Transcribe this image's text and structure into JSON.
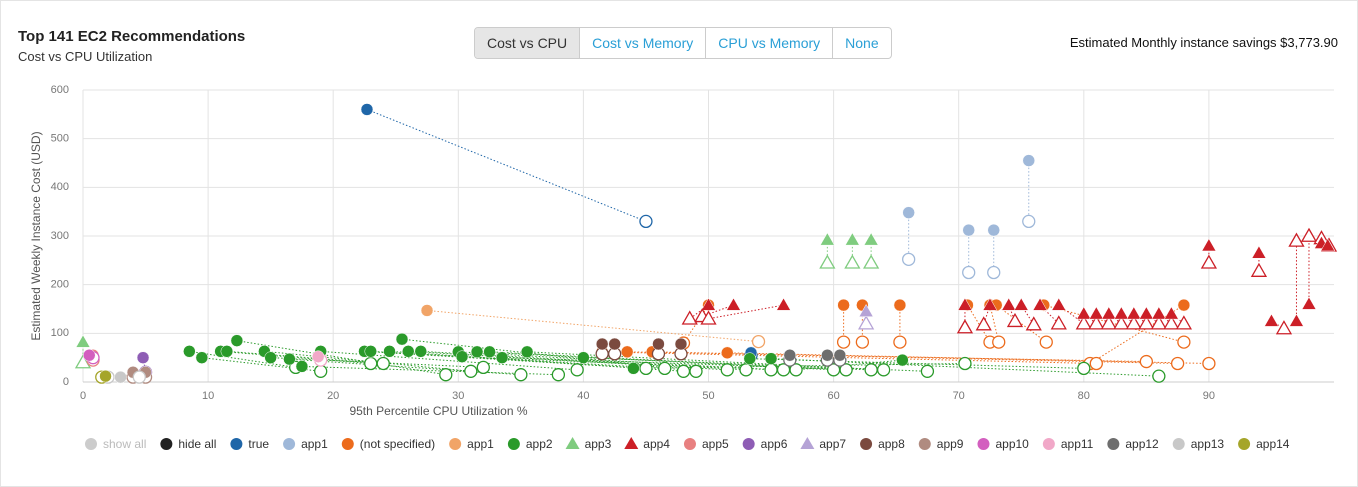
{
  "chart_data": {
    "type": "scatter",
    "title": "Top 141 EC2 Recommendations",
    "subtitle": "Cost vs CPU Utilization",
    "annotation": "Estimated Monthly instance savings $3,773.90",
    "tabs": [
      "Cost vs CPU",
      "Cost vs Memory",
      "CPU vs Memory",
      "None"
    ],
    "x_label": "95th Percentile CPU Utilization %",
    "y_label": "Estimated Weekly Instance Cost (USD)",
    "xlim": [
      0,
      100
    ],
    "ylim": [
      0,
      600
    ],
    "xticks": [
      0,
      10,
      20,
      30,
      40,
      50,
      60,
      70,
      80,
      90
    ],
    "yticks": [
      0,
      100,
      200,
      300,
      400,
      500,
      600
    ],
    "grid": true,
    "legend_controls": [
      {
        "name": "show all",
        "color": "#cccccc"
      },
      {
        "name": "hide all",
        "color": "#222222"
      }
    ],
    "series": [
      {
        "name": "true",
        "color": "#1f66a8",
        "marker": "circle",
        "x": [
          22.7,
          53.4
        ],
        "values": [
          560,
          60
        ],
        "rec_x": [
          45,
          53.4
        ],
        "rec_values": [
          330,
          55
        ]
      },
      {
        "name": "app1",
        "color": "#9fb8d9",
        "marker": "circle",
        "x": [
          66,
          70.8,
          72.8,
          75.6
        ],
        "values": [
          348,
          312,
          312,
          455
        ],
        "rec_x": [
          66,
          70.8,
          72.8,
          75.6
        ],
        "rec_values": [
          252,
          225,
          225,
          330
        ]
      },
      {
        "name": "(not specified)",
        "color": "#ec6b1c",
        "marker": "circle",
        "x": [
          50,
          60.8,
          62.3,
          65.3,
          70.7,
          72.5,
          73,
          76.8,
          88,
          41.5,
          43.5,
          45.5,
          51.5
        ],
        "values": [
          158,
          158,
          158,
          158,
          158,
          158,
          158,
          158,
          158,
          62,
          62,
          62,
          60
        ],
        "rec_x": [
          48,
          60.8,
          62.3,
          65.3,
          72.5,
          73.2,
          77,
          88,
          80.5,
          81,
          85,
          87.5,
          90
        ],
        "rec_values": [
          80,
          82,
          82,
          82,
          82,
          82,
          82,
          82,
          38,
          38,
          42,
          38,
          38
        ]
      },
      {
        "name": "app1",
        "color": "#f1a467",
        "marker": "circle",
        "x": [
          27.5
        ],
        "values": [
          147
        ],
        "rec_x": [
          54
        ],
        "rec_values": [
          83
        ]
      },
      {
        "name": "app2",
        "color": "#2a9a2a",
        "marker": "circle",
        "x": [
          8.5,
          9.5,
          11,
          11.5,
          12.3,
          14.5,
          15,
          16.5,
          17.5,
          19,
          22.5,
          23,
          24.5,
          25.5,
          26,
          27,
          30,
          30.3,
          31.5,
          32.5,
          33.5,
          35.5,
          40,
          44,
          53.3,
          55,
          65.5
        ],
        "values": [
          63,
          50,
          63,
          63,
          85,
          63,
          50,
          47,
          32,
          63,
          63,
          63,
          63,
          88,
          63,
          63,
          62,
          52,
          62,
          62,
          50,
          62,
          50,
          28,
          48,
          48,
          45
        ],
        "rec_x": [
          17,
          19,
          23,
          24,
          29,
          31,
          32,
          35,
          38,
          39.5,
          45,
          46.5,
          48,
          49,
          51.5,
          53,
          55,
          56,
          60,
          61,
          63,
          64,
          67.5,
          70.5,
          80,
          86,
          57
        ],
        "rec_values": [
          30,
          22,
          38,
          38,
          15,
          22,
          30,
          15,
          15,
          25,
          28,
          28,
          22,
          22,
          25,
          25,
          25,
          25,
          25,
          25,
          25,
          25,
          22,
          38,
          28,
          12,
          25
        ]
      },
      {
        "name": "app3",
        "color": "#7fcc7f",
        "marker": "triangle",
        "x": [
          0,
          59.5,
          61.5,
          63
        ],
        "values": [
          82,
          292,
          292,
          292
        ],
        "rec_x": [
          0,
          59.5,
          61.5,
          63
        ],
        "rec_values": [
          40,
          245,
          245,
          245
        ]
      },
      {
        "name": "app4",
        "color": "#cc1f27",
        "marker": "triangle",
        "x": [
          50,
          52,
          56,
          70.5,
          72.5,
          74,
          75,
          76.5,
          78,
          80,
          81,
          82,
          83,
          84,
          85,
          86,
          87,
          90,
          94,
          95,
          97,
          98,
          99,
          99.5
        ],
        "values": [
          158,
          158,
          158,
          158,
          158,
          158,
          158,
          158,
          158,
          140,
          140,
          140,
          140,
          140,
          140,
          140,
          140,
          280,
          265,
          125,
          125,
          160,
          285,
          280
        ],
        "rec_x": [
          48.5,
          49.5,
          50,
          70.5,
          72,
          74.5,
          76,
          78,
          80,
          81,
          82,
          83,
          84,
          85,
          86,
          87,
          88,
          90,
          94,
          96,
          97,
          98,
          99,
          99.6
        ],
        "rec_values": [
          130,
          135,
          130,
          112,
          118,
          125,
          118,
          120,
          120,
          120,
          120,
          120,
          120,
          120,
          120,
          120,
          120,
          245,
          228,
          110,
          290,
          300,
          295,
          280
        ]
      },
      {
        "name": "app5",
        "color": "#e88080",
        "marker": "circle",
        "x": [
          0.8
        ],
        "values": [
          55
        ],
        "rec_x": [
          0.8
        ],
        "rec_values": [
          45
        ]
      },
      {
        "name": "app6",
        "color": "#8e5db5",
        "marker": "circle",
        "x": [
          4.8
        ],
        "values": [
          50
        ],
        "rec_x": [
          5
        ],
        "rec_values": [
          20
        ]
      },
      {
        "name": "app7",
        "color": "#b5a3d6",
        "marker": "triangle",
        "x": [
          62.6
        ],
        "values": [
          145
        ],
        "rec_x": [
          62.6
        ],
        "rec_values": [
          120
        ]
      },
      {
        "name": "app8",
        "color": "#7b4a3f",
        "marker": "circle",
        "x": [
          41.5,
          42.5,
          46,
          47.8
        ],
        "values": [
          78,
          78,
          78,
          78
        ],
        "rec_x": [
          41.5,
          42.5,
          46,
          47.8
        ],
        "rec_values": [
          58,
          58,
          58,
          58
        ]
      },
      {
        "name": "app9",
        "color": "#b08b80",
        "marker": "circle",
        "x": [
          4,
          5
        ],
        "values": [
          20,
          20
        ],
        "rec_x": [
          4,
          5
        ],
        "rec_values": [
          10,
          10
        ]
      },
      {
        "name": "app10",
        "color": "#d35fbf",
        "marker": "circle",
        "x": [
          0.5
        ],
        "values": [
          55
        ],
        "rec_x": [
          0.8
        ],
        "rec_values": [
          50
        ]
      },
      {
        "name": "app11",
        "color": "#f1a8c8",
        "marker": "circle",
        "x": [
          18.8
        ],
        "values": [
          52
        ],
        "rec_x": [
          19
        ],
        "rec_values": [
          45
        ]
      },
      {
        "name": "app12",
        "color": "#6e6e6e",
        "marker": "circle",
        "x": [
          56.5,
          59.5,
          60.5
        ],
        "values": [
          55,
          55,
          55
        ],
        "rec_x": [
          56.5,
          59.5,
          60.5
        ],
        "rec_values": [
          45,
          45,
          45
        ]
      },
      {
        "name": "app13",
        "color": "#c8c8c8",
        "marker": "circle",
        "x": [
          1.5,
          3
        ],
        "values": [
          10,
          10
        ],
        "rec_x": [
          2,
          4.5
        ],
        "rec_values": [
          10,
          10
        ]
      },
      {
        "name": "app14",
        "color": "#a5a52a",
        "marker": "circle",
        "x": [
          1.8
        ],
        "values": [
          12
        ],
        "rec_x": [
          1.5
        ],
        "rec_values": [
          10
        ]
      }
    ]
  }
}
